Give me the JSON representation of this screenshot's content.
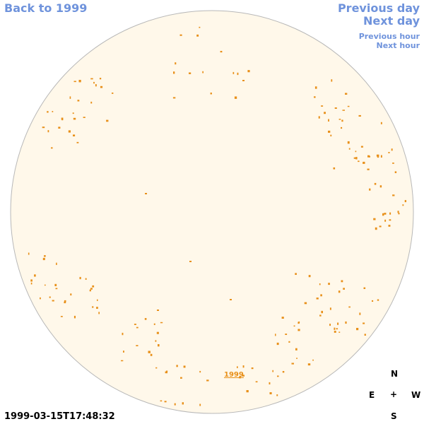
{
  "nav": {
    "back_label": "Back to 1999",
    "prev_day_label": "Previous day",
    "next_day_label": "Next day",
    "prev_hour_label": "Previous hour",
    "next_hour_label": "Next hour"
  },
  "year_label": "1999",
  "timestamp": "1999-03-15T17:48:32",
  "compass": {
    "north": "N",
    "east": "E",
    "center": "+",
    "west": "W",
    "south": "S"
  },
  "colors": {
    "link": "#6f93dc",
    "disc_fill": "#fff8ea",
    "disc_border": "#b8b8b8",
    "marker": "#e8901a"
  }
}
